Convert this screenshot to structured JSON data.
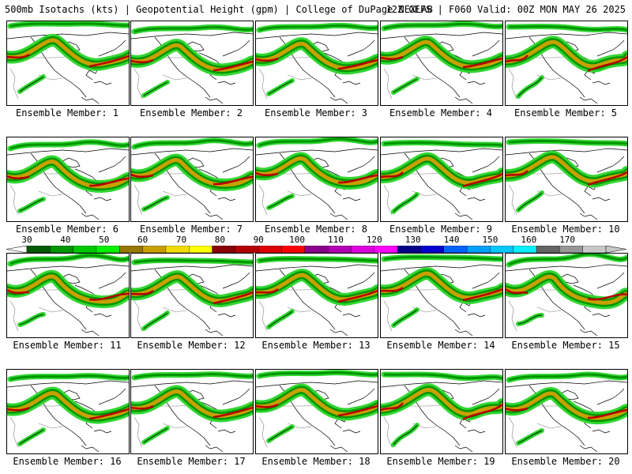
{
  "header": {
    "title": "500mb Isotachs (kts) | Geopotential Height (gpm) | College of DuPage NEXLAB",
    "valid": "12Z GEFS | F060 Valid: 00Z MON MAY 26 2025"
  },
  "members": [
    {
      "label": "Ensemble Member: 1"
    },
    {
      "label": "Ensemble Member: 2"
    },
    {
      "label": "Ensemble Member: 3"
    },
    {
      "label": "Ensemble Member: 4"
    },
    {
      "label": "Ensemble Member: 5"
    },
    {
      "label": "Ensemble Member: 6"
    },
    {
      "label": "Ensemble Member: 7"
    },
    {
      "label": "Ensemble Member: 8"
    },
    {
      "label": "Ensemble Member: 9"
    },
    {
      "label": "Ensemble Member: 10"
    },
    {
      "label": "Ensemble Member: 11"
    },
    {
      "label": "Ensemble Member: 12"
    },
    {
      "label": "Ensemble Member: 13"
    },
    {
      "label": "Ensemble Member: 14"
    },
    {
      "label": "Ensemble Member: 15"
    },
    {
      "label": "Ensemble Member: 16"
    },
    {
      "label": "Ensemble Member: 17"
    },
    {
      "label": "Ensemble Member: 18"
    },
    {
      "label": "Ensemble Member: 19"
    },
    {
      "label": "Ensemble Member: 20"
    }
  ],
  "colorbar": {
    "labels": [
      "30",
      "40",
      "50",
      "60",
      "70",
      "80",
      "90",
      "100",
      "110",
      "120",
      "130",
      "140",
      "150",
      "160",
      "170"
    ],
    "colors": [
      "#005a00",
      "#009600",
      "#00c800",
      "#00f000",
      "#967800",
      "#c8a000",
      "#f0dc00",
      "#ffff00",
      "#8b0000",
      "#b40000",
      "#dc0000",
      "#ff0000",
      "#8b008b",
      "#b400b4",
      "#dc00dc",
      "#ff00ff",
      "#00008b",
      "#0000cd",
      "#0064ff",
      "#00a0ff",
      "#00c8ff",
      "#00f0ff",
      "#646464",
      "#969696",
      "#c8c8c8"
    ]
  },
  "map_colors": {
    "jet_light": "#33d633",
    "jet_mid": "#009600",
    "jet_dark": "#005a00",
    "jet_gold": "#c8a000",
    "jet_core": "#b40000",
    "coast": "#000000",
    "border": "#808080"
  }
}
